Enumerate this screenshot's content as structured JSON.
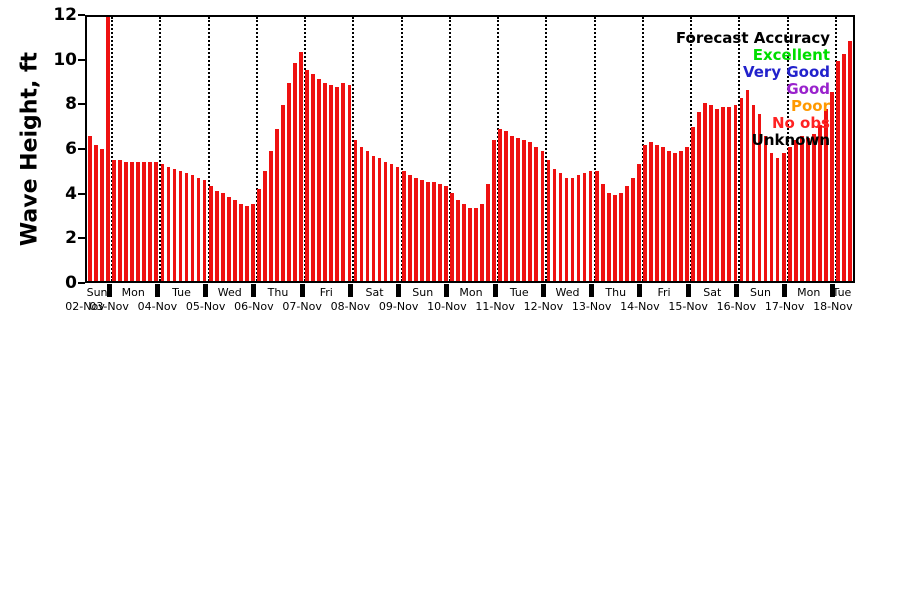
{
  "page": {
    "background": "#ffffff"
  },
  "chart_data": {
    "type": "bar",
    "title": "",
    "xlabel": "",
    "ylabel": "Wave Height, ft",
    "ylim": [
      0,
      12
    ],
    "yticks": [
      0,
      2,
      4,
      6,
      8,
      10,
      12
    ],
    "bar_color": "#ee1111",
    "grid": "dotted vertical lines at day boundaries",
    "legend": {
      "title": "Forecast Accuracy",
      "position": "top-right-inside",
      "entries": [
        {
          "label": "Excellent",
          "color": "#00dd00"
        },
        {
          "label": "Very Good",
          "color": "#2222cc"
        },
        {
          "label": "Good",
          "color": "#9922cc"
        },
        {
          "label": "Poor",
          "color": "#ff9900"
        },
        {
          "label": "No obs",
          "color": "#ff2222"
        },
        {
          "label": "Unknown",
          "color": "#000000"
        }
      ]
    },
    "days": [
      {
        "name": "Sun",
        "date": "02-Nov",
        "values": [
          6.6,
          6.2,
          6.0,
          12.0
        ]
      },
      {
        "name": "Mon",
        "date": "03-Nov",
        "values": [
          5.5,
          5.5,
          5.4,
          5.4,
          5.4,
          5.4,
          5.4,
          5.4
        ]
      },
      {
        "name": "Tue",
        "date": "04-Nov",
        "values": [
          5.3,
          5.2,
          5.1,
          5.0,
          4.9,
          4.8,
          4.7,
          4.6
        ]
      },
      {
        "name": "Wed",
        "date": "05-Nov",
        "values": [
          4.3,
          4.1,
          4.0,
          3.8,
          3.7,
          3.5,
          3.4,
          3.5
        ]
      },
      {
        "name": "Thu",
        "date": "06-Nov",
        "values": [
          4.2,
          5.0,
          5.9,
          6.9,
          8.0,
          9.0,
          9.9,
          10.4
        ]
      },
      {
        "name": "Fri",
        "date": "07-Nov",
        "values": [
          9.6,
          9.4,
          9.2,
          9.0,
          8.9,
          8.8,
          9.0,
          8.9
        ]
      },
      {
        "name": "Sat",
        "date": "08-Nov",
        "values": [
          6.4,
          6.1,
          5.9,
          5.7,
          5.6,
          5.4,
          5.3,
          5.2
        ]
      },
      {
        "name": "Sun",
        "date": "09-Nov",
        "values": [
          5.0,
          4.8,
          4.7,
          4.6,
          4.5,
          4.5,
          4.4,
          4.3
        ]
      },
      {
        "name": "Mon",
        "date": "10-Nov",
        "values": [
          4.0,
          3.7,
          3.5,
          3.3,
          3.3,
          3.5,
          4.4,
          6.4
        ]
      },
      {
        "name": "Tue",
        "date": "11-Nov",
        "values": [
          6.9,
          6.8,
          6.6,
          6.5,
          6.4,
          6.3,
          6.1,
          5.9
        ]
      },
      {
        "name": "Wed",
        "date": "12-Nov",
        "values": [
          5.5,
          5.1,
          4.9,
          4.7,
          4.7,
          4.8,
          4.9,
          5.0
        ]
      },
      {
        "name": "Thu",
        "date": "13-Nov",
        "values": [
          5.0,
          4.4,
          4.0,
          3.9,
          4.0,
          4.3,
          4.7,
          5.3
        ]
      },
      {
        "name": "Fri",
        "date": "14-Nov",
        "values": [
          6.2,
          6.3,
          6.2,
          6.1,
          5.9,
          5.8,
          5.9,
          6.1
        ]
      },
      {
        "name": "Sat",
        "date": "15-Nov",
        "values": [
          7.0,
          7.7,
          8.1,
          8.0,
          7.8,
          7.9,
          7.9,
          8.0
        ]
      },
      {
        "name": "Sun",
        "date": "16-Nov",
        "values": [
          8.3,
          8.7,
          8.0,
          7.6,
          6.6,
          5.8,
          5.6,
          5.8
        ]
      },
      {
        "name": "Mon",
        "date": "17-Nov",
        "values": [
          6.1,
          6.4,
          6.6,
          6.5,
          6.7,
          7.1,
          7.8,
          8.6
        ]
      },
      {
        "name": "Tue",
        "date": "18-Nov",
        "values": [
          10.0,
          10.3,
          10.9
        ]
      }
    ]
  }
}
